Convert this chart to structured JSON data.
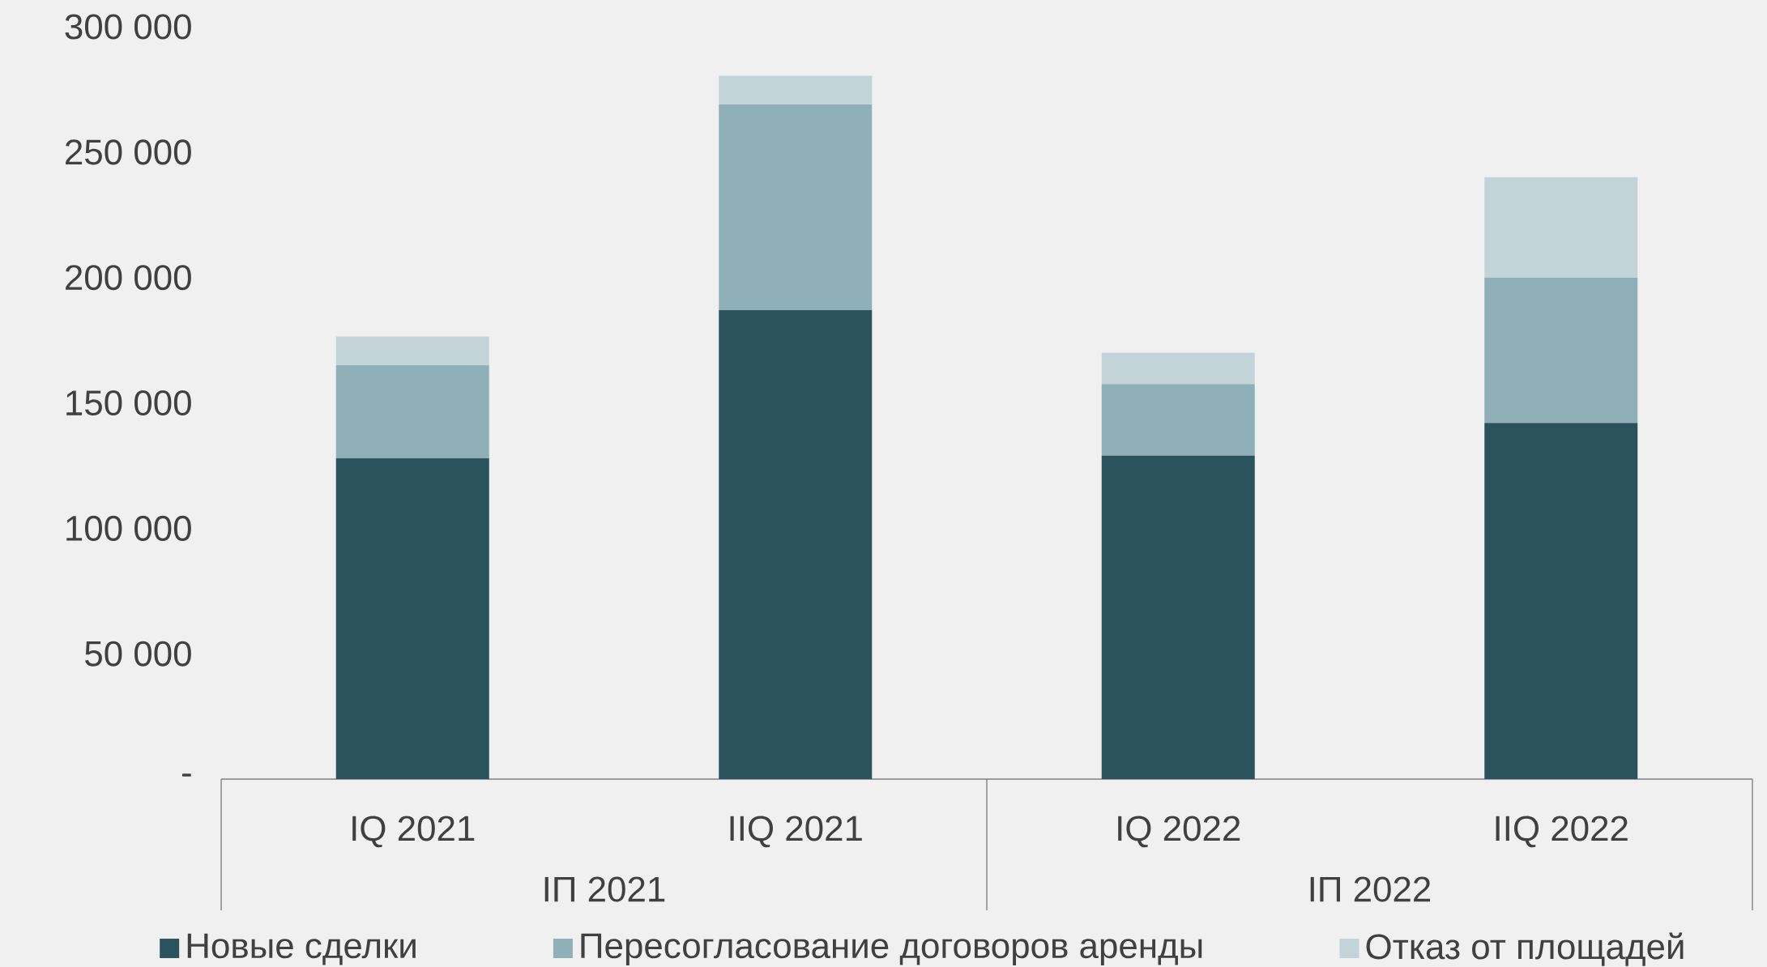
{
  "chart_data": {
    "type": "bar",
    "stacked": true,
    "categories": [
      "IQ 2021",
      "IIQ 2021",
      "IQ 2022",
      "IIQ 2022"
    ],
    "series": [
      {
        "name": "Новые сделки",
        "color": "#2b535e",
        "values": [
          128000,
          187000,
          129000,
          142000
        ]
      },
      {
        "name": "Пересогласование договоров аренды",
        "color": "#8fb0b8",
        "values": [
          37000,
          82000,
          28500,
          58000
        ]
      },
      {
        "name": "Отказ от площадей",
        "color": "#c2d4d8",
        "values": [
          11500,
          11500,
          12500,
          40000
        ]
      }
    ],
    "annotations": [
      "IП 2021",
      "IП 2022"
    ],
    "ylim": [
      0,
      300000
    ],
    "yticks": [
      {
        "value": 0,
        "label": "-"
      },
      {
        "value": 50000,
        "label": "50 000"
      },
      {
        "value": 100000,
        "label": "100 000"
      },
      {
        "value": 150000,
        "label": "150 000"
      },
      {
        "value": 200000,
        "label": "200 000"
      },
      {
        "value": 250000,
        "label": "250 000"
      },
      {
        "value": 300000,
        "label": "300 000"
      }
    ],
    "grid": false,
    "legend": "bottom"
  }
}
